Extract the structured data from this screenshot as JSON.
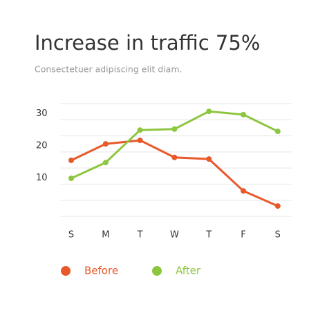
{
  "chart_data": {
    "type": "line",
    "title": "Increase in traffic 75%",
    "subtitle": "Consectetuer adipiscing elit diam.",
    "categories": [
      "S",
      "M",
      "T",
      "W",
      "T",
      "F",
      "S"
    ],
    "series": [
      {
        "name": "Before",
        "color": "#e8582a",
        "values": [
          17.4,
          22.5,
          23.6,
          18.3,
          17.8,
          7.9,
          3.2
        ]
      },
      {
        "name": "After",
        "color": "#8dc63f",
        "values": [
          11.8,
          16.7,
          26.8,
          27.1,
          32.6,
          31.6,
          26.4
        ]
      }
    ],
    "ylim": [
      0,
      35
    ],
    "yticks": [
      10,
      20,
      30
    ],
    "minor_yticks": [
      0,
      5,
      15,
      25,
      35
    ],
    "grid": true
  }
}
